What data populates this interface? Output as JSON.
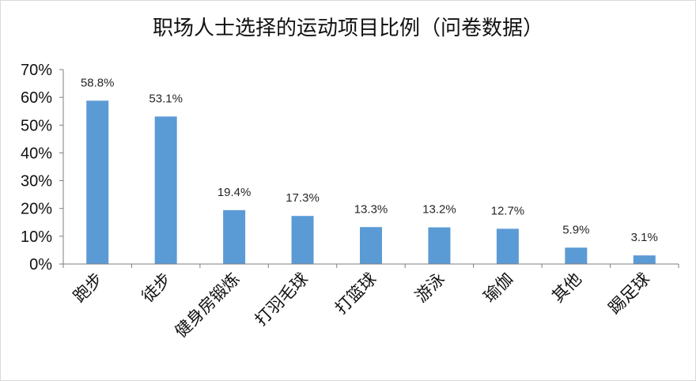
{
  "chart_data": {
    "type": "bar",
    "title": "职场人士选择的运动项目比例（问卷数据）",
    "categories": [
      "跑步",
      "徒步",
      "健身房锻炼",
      "打羽毛球",
      "打篮球",
      "游泳",
      "瑜伽",
      "其他",
      "踢足球"
    ],
    "values": [
      58.8,
      53.1,
      19.4,
      17.3,
      13.3,
      13.2,
      12.7,
      5.9,
      3.1
    ],
    "data_labels": [
      "58.8%",
      "53.1%",
      "19.4%",
      "17.3%",
      "13.3%",
      "13.2%",
      "12.7%",
      "5.9%",
      "3.1%"
    ],
    "yticks": [
      "0%",
      "10%",
      "20%",
      "30%",
      "40%",
      "50%",
      "60%",
      "70%"
    ],
    "ylim": [
      0,
      70
    ],
    "bar_color": "#5B9BD5",
    "grid": false,
    "legend": "none"
  }
}
